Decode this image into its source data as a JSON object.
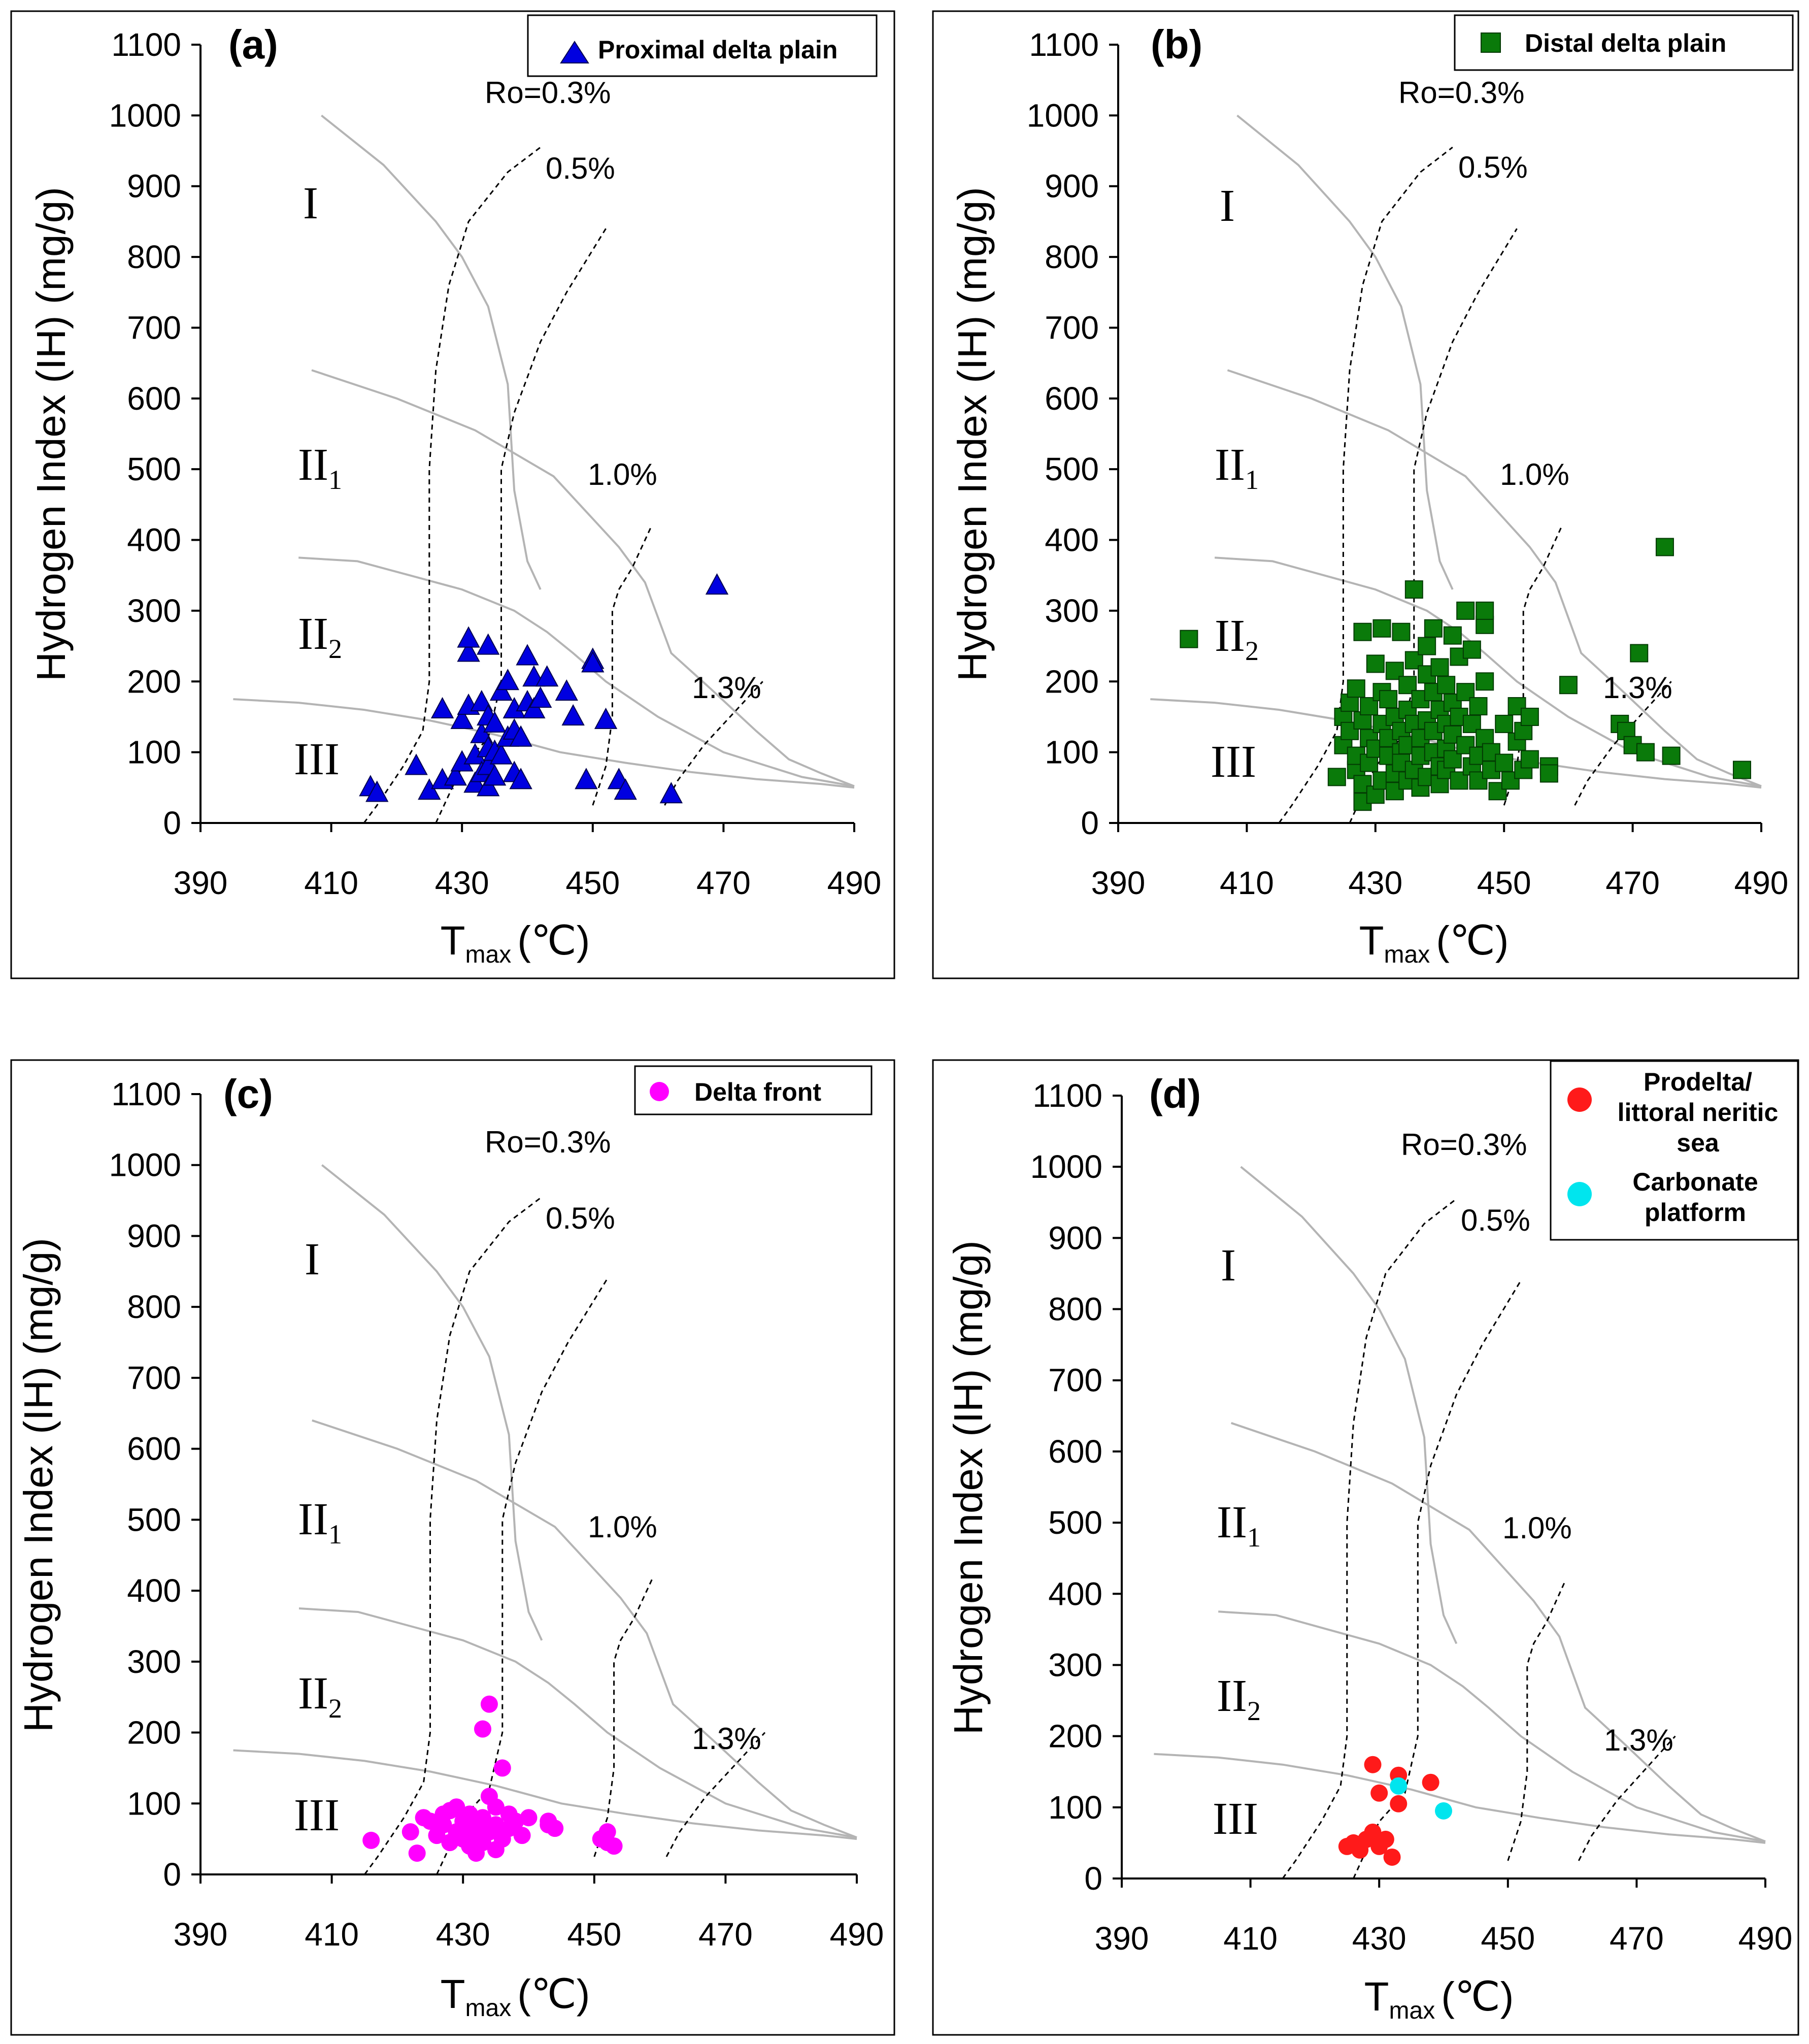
{
  "figure": {
    "x_axis_title": "T",
    "x_axis_sub": "max",
    "x_axis_unit": "(℃)",
    "y_axis_title": "Hydrogen Index (IH) (mg/g)",
    "x_ticks": [
      "390",
      "410",
      "430",
      "450",
      "470",
      "490"
    ],
    "y_ticks": [
      "0",
      "100",
      "200",
      "300",
      "400",
      "500",
      "600",
      "700",
      "800",
      "900",
      "1000",
      "1100"
    ],
    "kerogen_types": {
      "I": "I",
      "II1_main": "II",
      "II1_sub": "1",
      "II2_main": "II",
      "II2_sub": "2",
      "III": "III"
    },
    "ro_labels": {
      "ro03": "Ro=0.3%",
      "ro05": "0.5%",
      "ro10": "1.0%",
      "ro13": "1.3%"
    }
  },
  "chart_data": [
    {
      "type": "scatter",
      "panel": "(a)",
      "xlabel": "Tmax (℃)",
      "ylabel": "Hydrogen Index (IH) (mg/g)",
      "xlim": [
        390,
        490
      ],
      "ylim": [
        0,
        1100
      ],
      "series": [
        {
          "name": "Proximal delta plain",
          "marker": "triangle",
          "color": "#0000e0",
          "points": [
            [
              416,
              50
            ],
            [
              417,
              42
            ],
            [
              423,
              80
            ],
            [
              425,
              45
            ],
            [
              427,
              160
            ],
            [
              427,
              60
            ],
            [
              429,
              65
            ],
            [
              430,
              85
            ],
            [
              430,
              145
            ],
            [
              431,
              165
            ],
            [
              431,
              240
            ],
            [
              431,
              260
            ],
            [
              432,
              55
            ],
            [
              432,
              95
            ],
            [
              433,
              70
            ],
            [
              433,
              125
            ],
            [
              433,
              170
            ],
            [
              434,
              50
            ],
            [
              434,
              80
            ],
            [
              434,
              105
            ],
            [
              434,
              150
            ],
            [
              434,
              250
            ],
            [
              435,
              65
            ],
            [
              435,
              100
            ],
            [
              435,
              140
            ],
            [
              436,
              185
            ],
            [
              436,
              95
            ],
            [
              437,
              120
            ],
            [
              437,
              200
            ],
            [
              438,
              70
            ],
            [
              438,
              130
            ],
            [
              438,
              160
            ],
            [
              439,
              120
            ],
            [
              439,
              60
            ],
            [
              440,
              170
            ],
            [
              440,
              235
            ],
            [
              441,
              205
            ],
            [
              441,
              160
            ],
            [
              442,
              175
            ],
            [
              443,
              205
            ],
            [
              446,
              185
            ],
            [
              447,
              150
            ],
            [
              449,
              60
            ],
            [
              450,
              230
            ],
            [
              450,
              225
            ],
            [
              452,
              145
            ],
            [
              454,
              60
            ],
            [
              455,
              45
            ],
            [
              462,
              40
            ],
            [
              469,
              335
            ]
          ]
        }
      ]
    },
    {
      "type": "scatter",
      "panel": "(b)",
      "xlabel": "Tmax (℃)",
      "ylabel": "Hydrogen Index (IH) (mg/g)",
      "xlim": [
        390,
        490
      ],
      "ylim": [
        0,
        1100
      ],
      "series": [
        {
          "name": "Distal delta plain",
          "marker": "square",
          "color": "#0a7a0a",
          "points": [
            [
              401,
              260
            ],
            [
              424,
              65
            ],
            [
              425,
              150
            ],
            [
              425,
              110
            ],
            [
              426,
              130
            ],
            [
              426,
              170
            ],
            [
              427,
              75
            ],
            [
              427,
              190
            ],
            [
              427,
              95
            ],
            [
              428,
              55
            ],
            [
              428,
              145
            ],
            [
              428,
              270
            ],
            [
              428,
              30
            ],
            [
              429,
              120
            ],
            [
              429,
              165
            ],
            [
              429,
              85
            ],
            [
              430,
              105
            ],
            [
              430,
              225
            ],
            [
              430,
              40
            ],
            [
              431,
              275
            ],
            [
              431,
              140
            ],
            [
              431,
              60
            ],
            [
              431,
              185
            ],
            [
              432,
              95
            ],
            [
              432,
              175
            ],
            [
              432,
              120
            ],
            [
              433,
              70
            ],
            [
              433,
              215
            ],
            [
              433,
              150
            ],
            [
              433,
              45
            ],
            [
              434,
              270
            ],
            [
              434,
              100
            ],
            [
              434,
              130
            ],
            [
              434,
              85
            ],
            [
              435,
              160
            ],
            [
              435,
              60
            ],
            [
              435,
              195
            ],
            [
              435,
              110
            ],
            [
              436,
              330
            ],
            [
              436,
              140
            ],
            [
              436,
              75
            ],
            [
              436,
              230
            ],
            [
              437,
              120
            ],
            [
              437,
              50
            ],
            [
              437,
              175
            ],
            [
              437,
              95
            ],
            [
              438,
              210
            ],
            [
              438,
              145
            ],
            [
              438,
              65
            ],
            [
              438,
              250
            ],
            [
              439,
              185
            ],
            [
              439,
              100
            ],
            [
              439,
              130
            ],
            [
              439,
              275
            ],
            [
              440,
              160
            ],
            [
              440,
              80
            ],
            [
              440,
              220
            ],
            [
              440,
              55
            ],
            [
              441,
              140
            ],
            [
              441,
              195
            ],
            [
              441,
              105
            ],
            [
              441,
              75
            ],
            [
              442,
              265
            ],
            [
              442,
              170
            ],
            [
              442,
              90
            ],
            [
              442,
              125
            ],
            [
              443,
              60
            ],
            [
              443,
              235
            ],
            [
              443,
              150
            ],
            [
              444,
              300
            ],
            [
              444,
              110
            ],
            [
              444,
              185
            ],
            [
              445,
              80
            ],
            [
              445,
              140
            ],
            [
              445,
              245
            ],
            [
              446,
              95
            ],
            [
              446,
              165
            ],
            [
              446,
              60
            ],
            [
              447,
              280
            ],
            [
              447,
              120
            ],
            [
              447,
              300
            ],
            [
              447,
              200
            ],
            [
              448,
              75
            ],
            [
              448,
              100
            ],
            [
              449,
              45
            ],
            [
              450,
              140
            ],
            [
              450,
              85
            ],
            [
              451,
              60
            ],
            [
              452,
              165
            ],
            [
              452,
              115
            ],
            [
              453,
              75
            ],
            [
              453,
              130
            ],
            [
              454,
              150
            ],
            [
              454,
              90
            ],
            [
              457,
              80
            ],
            [
              457,
              70
            ],
            [
              460,
              195
            ],
            [
              468,
              140
            ],
            [
              469,
              130
            ],
            [
              470,
              110
            ],
            [
              471,
              240
            ],
            [
              472,
              100
            ],
            [
              476,
              95
            ],
            [
              475,
              390
            ],
            [
              487,
              75
            ]
          ]
        }
      ]
    },
    {
      "type": "scatter",
      "panel": "(c)",
      "xlabel": "Tmax (℃)",
      "ylabel": "Hydrogen Index (IH) (mg/g)",
      "xlim": [
        390,
        490
      ],
      "ylim": [
        0,
        1100
      ],
      "series": [
        {
          "name": "Delta front",
          "marker": "circle",
          "color": "#ff00ff",
          "points": [
            [
              416,
              48
            ],
            [
              422,
              60
            ],
            [
              423,
              30
            ],
            [
              424,
              80
            ],
            [
              425,
              75
            ],
            [
              426,
              55
            ],
            [
              427,
              70
            ],
            [
              427,
              85
            ],
            [
              428,
              45
            ],
            [
              428,
              90
            ],
            [
              429,
              60
            ],
            [
              429,
              95
            ],
            [
              430,
              50
            ],
            [
              430,
              75
            ],
            [
              431,
              40
            ],
            [
              431,
              65
            ],
            [
              431,
              85
            ],
            [
              432,
              55
            ],
            [
              432,
              70
            ],
            [
              432,
              30
            ],
            [
              433,
              205
            ],
            [
              433,
              80
            ],
            [
              433,
              45
            ],
            [
              434,
              240
            ],
            [
              434,
              110
            ],
            [
              434,
              60
            ],
            [
              435,
              35
            ],
            [
              435,
              95
            ],
            [
              435,
              70
            ],
            [
              436,
              150
            ],
            [
              436,
              50
            ],
            [
              437,
              85
            ],
            [
              437,
              65
            ],
            [
              438,
              75
            ],
            [
              439,
              55
            ],
            [
              440,
              80
            ],
            [
              443,
              70
            ],
            [
              443,
              75
            ],
            [
              444,
              65
            ],
            [
              451,
              50
            ],
            [
              452,
              60
            ],
            [
              452,
              45
            ],
            [
              453,
              40
            ]
          ]
        }
      ]
    },
    {
      "type": "scatter",
      "panel": "(d)",
      "xlabel": "Tmax (℃)",
      "ylabel": "Hydrogen Index (IH) (mg/g)",
      "xlim": [
        390,
        490
      ],
      "ylim": [
        0,
        1100
      ],
      "series": [
        {
          "name": "Prodelta/ littoral neritic sea",
          "marker": "circle",
          "color": "#ff1a1a",
          "points": [
            [
              425,
              45
            ],
            [
              426,
              50
            ],
            [
              427,
              40
            ],
            [
              428,
              55
            ],
            [
              429,
              65
            ],
            [
              429,
              160
            ],
            [
              430,
              120
            ],
            [
              430,
              45
            ],
            [
              431,
              55
            ],
            [
              432,
              30
            ],
            [
              433,
              145
            ],
            [
              433,
              105
            ],
            [
              438,
              135
            ]
          ]
        },
        {
          "name": "Carbonate platform",
          "marker": "circle",
          "color": "#00e5ee",
          "points": [
            [
              433,
              130
            ],
            [
              440,
              95
            ]
          ]
        }
      ]
    }
  ]
}
